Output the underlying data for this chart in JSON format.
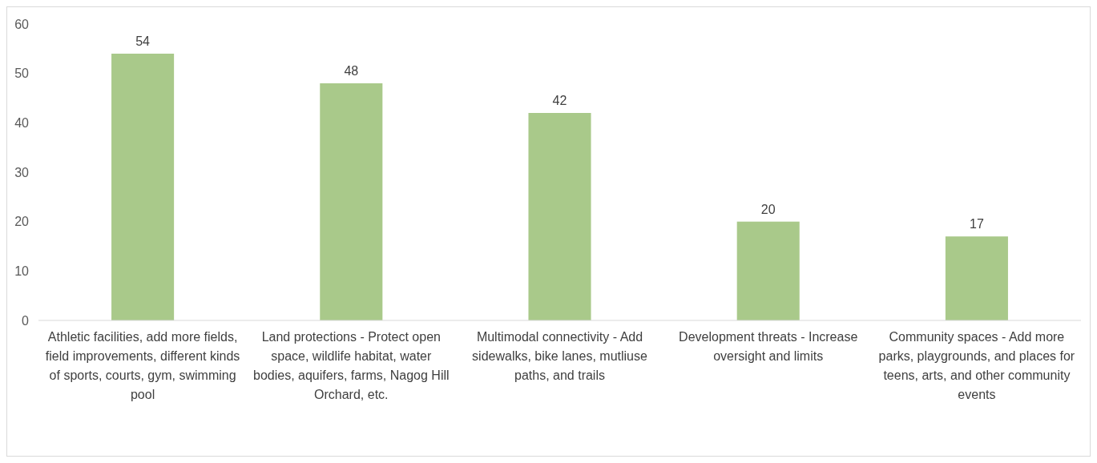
{
  "chart_data": {
    "type": "bar",
    "categories": [
      "Athletic facilities, add more fields, field improvements, different kinds of sports, courts, gym, swimming pool",
      "Land protections - Protect open space, wildlife habitat, water bodies, aquifers, farms, Nagog Hill Orchard, etc.",
      "Multimodal connectivity - Add sidewalks, bike lanes, mutliuse paths, and trails",
      "Development threats - Increase oversight and limits",
      "Community spaces - Add more parks, playgrounds, and places for teens, arts, and other community events"
    ],
    "values": [
      54,
      48,
      42,
      20,
      17
    ],
    "color": "#a9c98a",
    "ylim": [
      0,
      60
    ],
    "yticks": [
      0,
      10,
      20,
      30,
      40,
      50,
      60
    ],
    "data_labels": true
  }
}
